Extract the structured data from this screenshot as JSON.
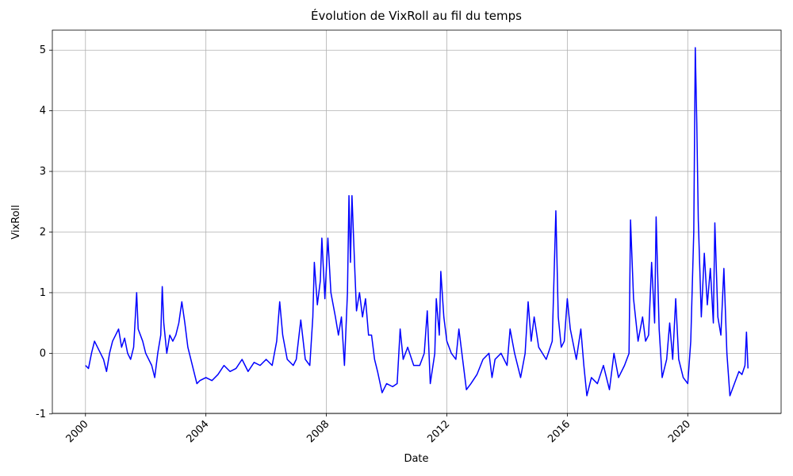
{
  "chart_data": {
    "type": "line",
    "title": "Évolution de VixRoll au fil du temps",
    "x_label": "Date",
    "y_label": "VixRoll",
    "color": "#0000ff",
    "grid": true,
    "x": [
      2000.0,
      2000.1,
      2000.2,
      2000.3,
      2000.4,
      2000.5,
      2000.6,
      2000.7,
      2000.8,
      2000.9,
      2001.0,
      2001.1,
      2001.2,
      2001.3,
      2001.4,
      2001.5,
      2001.6,
      2001.7,
      2001.75,
      2001.9,
      2002.0,
      2002.2,
      2002.3,
      2002.4,
      2002.5,
      2002.55,
      2002.6,
      2002.7,
      2002.8,
      2002.9,
      2003.0,
      2003.1,
      2003.2,
      2003.3,
      2003.4,
      2003.5,
      2003.6,
      2003.7,
      2003.8,
      2004.0,
      2004.2,
      2004.4,
      2004.6,
      2004.8,
      2005.0,
      2005.2,
      2005.4,
      2005.6,
      2005.8,
      2006.0,
      2006.2,
      2006.35,
      2006.45,
      2006.55,
      2006.7,
      2006.9,
      2007.0,
      2007.15,
      2007.3,
      2007.45,
      2007.55,
      2007.6,
      2007.7,
      2007.8,
      2007.85,
      2007.95,
      2008.05,
      2008.15,
      2008.3,
      2008.4,
      2008.5,
      2008.6,
      2008.7,
      2008.75,
      2008.8,
      2008.85,
      2008.95,
      2009.0,
      2009.1,
      2009.2,
      2009.3,
      2009.4,
      2009.5,
      2009.6,
      2009.7,
      2009.85,
      2010.0,
      2010.2,
      2010.35,
      2010.45,
      2010.55,
      2010.7,
      2010.9,
      2011.1,
      2011.25,
      2011.35,
      2011.45,
      2011.6,
      2011.65,
      2011.75,
      2011.8,
      2011.9,
      2012.0,
      2012.15,
      2012.3,
      2012.4,
      2012.55,
      2012.65,
      2012.8,
      2013.0,
      2013.2,
      2013.4,
      2013.5,
      2013.6,
      2013.8,
      2014.0,
      2014.1,
      2014.25,
      2014.45,
      2014.6,
      2014.7,
      2014.8,
      2014.9,
      2015.05,
      2015.3,
      2015.5,
      2015.62,
      2015.7,
      2015.8,
      2015.9,
      2016.0,
      2016.1,
      2016.3,
      2016.45,
      2016.55,
      2016.65,
      2016.8,
      2017.0,
      2017.2,
      2017.4,
      2017.55,
      2017.7,
      2017.9,
      2018.05,
      2018.1,
      2018.2,
      2018.35,
      2018.5,
      2018.6,
      2018.7,
      2018.8,
      2018.9,
      2018.95,
      2019.05,
      2019.15,
      2019.3,
      2019.4,
      2019.5,
      2019.6,
      2019.7,
      2019.85,
      2020.0,
      2020.1,
      2020.2,
      2020.25,
      2020.3,
      2020.35,
      2020.45,
      2020.55,
      2020.65,
      2020.75,
      2020.85,
      2020.9,
      2021.0,
      2021.1,
      2021.2,
      2021.3,
      2021.4,
      2021.55,
      2021.7,
      2021.8,
      2021.9,
      2021.95,
      2022.0
    ],
    "values": [
      -0.2,
      -0.25,
      0.0,
      0.2,
      0.1,
      0.0,
      -0.1,
      -0.3,
      0.0,
      0.2,
      0.3,
      0.4,
      0.1,
      0.25,
      0.0,
      -0.1,
      0.1,
      1.0,
      0.4,
      0.2,
      0.0,
      -0.2,
      -0.4,
      0.0,
      0.3,
      1.1,
      0.5,
      0.0,
      0.3,
      0.2,
      0.3,
      0.5,
      0.85,
      0.5,
      0.1,
      -0.1,
      -0.3,
      -0.5,
      -0.45,
      -0.4,
      -0.45,
      -0.35,
      -0.2,
      -0.3,
      -0.25,
      -0.1,
      -0.3,
      -0.15,
      -0.2,
      -0.1,
      -0.2,
      0.2,
      0.85,
      0.3,
      -0.1,
      -0.2,
      -0.1,
      0.55,
      -0.1,
      -0.2,
      0.6,
      1.5,
      0.8,
      1.2,
      1.9,
      0.9,
      1.9,
      1.0,
      0.6,
      0.3,
      0.6,
      -0.2,
      1.0,
      2.6,
      1.5,
      2.6,
      1.3,
      0.7,
      1.0,
      0.6,
      0.9,
      0.3,
      0.3,
      -0.1,
      -0.3,
      -0.65,
      -0.5,
      -0.55,
      -0.5,
      0.4,
      -0.1,
      0.1,
      -0.2,
      -0.2,
      0.0,
      0.7,
      -0.5,
      0.0,
      0.9,
      0.3,
      1.35,
      0.6,
      0.2,
      0.0,
      -0.1,
      0.4,
      -0.2,
      -0.6,
      -0.5,
      -0.35,
      -0.1,
      0.0,
      -0.4,
      -0.1,
      0.0,
      -0.2,
      0.4,
      0.0,
      -0.4,
      0.0,
      0.85,
      0.2,
      0.6,
      0.1,
      -0.1,
      0.2,
      2.35,
      0.6,
      0.1,
      0.2,
      0.9,
      0.4,
      -0.1,
      0.4,
      -0.2,
      -0.7,
      -0.4,
      -0.5,
      -0.2,
      -0.6,
      0.0,
      -0.4,
      -0.2,
      0.0,
      2.2,
      0.9,
      0.2,
      0.6,
      0.2,
      0.3,
      1.5,
      0.5,
      2.25,
      0.4,
      -0.4,
      -0.1,
      0.5,
      -0.1,
      0.9,
      -0.1,
      -0.4,
      -0.5,
      0.2,
      2.0,
      5.04,
      3.8,
      2.2,
      0.6,
      1.65,
      0.8,
      1.4,
      0.5,
      2.15,
      0.6,
      0.3,
      1.4,
      0.0,
      -0.7,
      -0.5,
      -0.3,
      -0.35,
      -0.2,
      0.35,
      -0.25
    ],
    "xlim": [
      1998.9,
      2023.1
    ],
    "ylim": [
      -0.99,
      5.33
    ],
    "xticks": [
      2000,
      2004,
      2008,
      2012,
      2016,
      2020
    ],
    "yticks": [
      -1,
      0,
      1,
      2,
      3,
      4,
      5
    ]
  }
}
